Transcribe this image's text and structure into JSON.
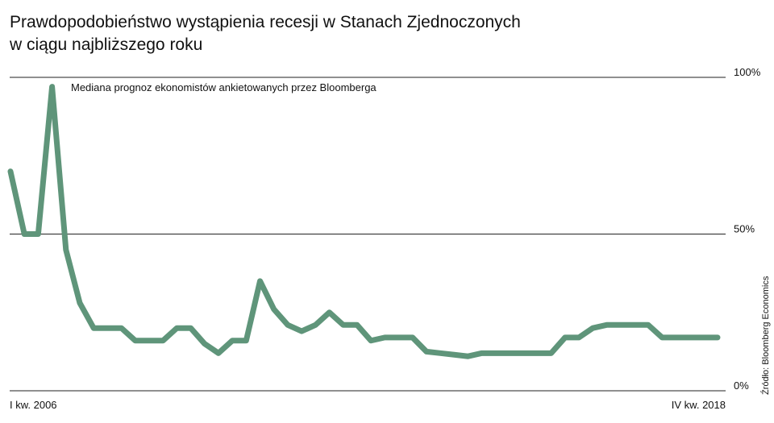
{
  "chart_data": {
    "type": "line",
    "title": [
      "Prawdopodobieństwo wystąpienia recesji w Stanach Zjednoczonych",
      "w ciągu najbliższego roku"
    ],
    "annotation": "Mediana prognoz ekonomistów ankietowanych przez Bloomberga",
    "source": "Źródło: Bloomberg Economics",
    "categories": [
      "I kw. 2006",
      null,
      null,
      null,
      null,
      null,
      null,
      null,
      null,
      null,
      null,
      null,
      null,
      null,
      null,
      null,
      null,
      null,
      null,
      null,
      null,
      null,
      null,
      null,
      null,
      null,
      null,
      null,
      null,
      null,
      null,
      null,
      null,
      null,
      null,
      null,
      null,
      null,
      null,
      null,
      null,
      null,
      null,
      null,
      null,
      null,
      null,
      null,
      null,
      null,
      null,
      "IV kw. 2018"
    ],
    "series": [
      {
        "name": "Mediana",
        "color": "#5f957a",
        "values": [
          70,
          50,
          50,
          97,
          45,
          28,
          20,
          20,
          20,
          16,
          16,
          16,
          20,
          20,
          15,
          12,
          16,
          16,
          35,
          26,
          21,
          19,
          21,
          25,
          21,
          21,
          16,
          17,
          17,
          17,
          12.5,
          12,
          11.5,
          11,
          12,
          12,
          12,
          12,
          12,
          12,
          17,
          17,
          20,
          21,
          21,
          21,
          21,
          17,
          17,
          17,
          17,
          17
        ]
      }
    ],
    "ylim": [
      0,
      100
    ],
    "yticks": [
      {
        "value": 0,
        "label": "0%"
      },
      {
        "value": 50,
        "label": "50%"
      },
      {
        "value": 100,
        "label": "100%"
      }
    ],
    "grid": true
  }
}
